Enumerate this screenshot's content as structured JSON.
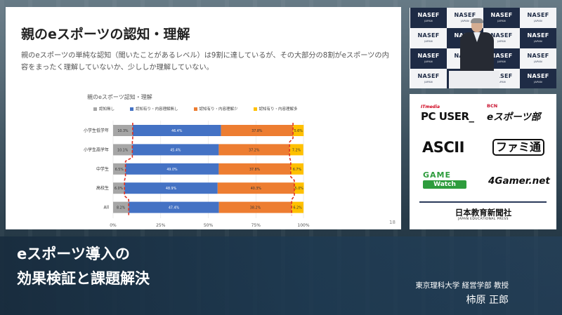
{
  "slide": {
    "title": "親のeスポーツの認知・理解",
    "description": "親のeスポーツの単純な認知（聞いたことがあるレベル）は9割に達しているが、その大部分の8割がeスポーツの内容をまったく理解していないか、少ししか理解していない。",
    "page_number": "18"
  },
  "chart_data": {
    "type": "bar",
    "stacked": "100%",
    "orientation": "horizontal",
    "title": "親のeスポーツ認知・理解",
    "categories": [
      "小学生低学年",
      "小学生高学年",
      "中学生",
      "高校生",
      "All"
    ],
    "series": [
      {
        "name": "認知無し",
        "color": "#a6a6a6",
        "values": [
          10.3,
          10.1,
          6.5,
          6.0,
          8.2
        ],
        "labels": [
          "10.3%",
          "10.1%",
          "6.5%",
          "6.0%",
          "8.2%"
        ]
      },
      {
        "name": "認知有り・内容理解無し",
        "color": "#4472c4",
        "values": [
          46.4,
          45.4,
          49.0,
          48.9,
          47.4
        ],
        "labels": [
          "46.4%",
          "45.4%",
          "49.0%",
          "48.9%",
          "47.4%"
        ]
      },
      {
        "name": "認知有り・内容理解少",
        "color": "#ed7d31",
        "values": [
          37.8,
          37.2,
          37.8,
          40.3,
          38.2
        ],
        "labels": [
          "37.8%",
          "37.2%",
          "37.8%",
          "40.3%",
          "38.2%"
        ]
      },
      {
        "name": "認知有り・内容理解多",
        "color": "#ffc000",
        "values": [
          5.6,
          7.2,
          6.7,
          5.0,
          6.2
        ],
        "labels": [
          "5.6%",
          "7.2%",
          "6.7%",
          "5.0%",
          "6.2%"
        ]
      }
    ],
    "x_ticks": [
      "0%",
      "25%",
      "50%",
      "75%",
      "100%"
    ],
    "xlim": [
      0,
      100
    ],
    "legend": "top",
    "annotations": "red dashed lines at boundaries of 認知無し and 認知有り・内容理解多"
  },
  "camera": {
    "tile_text": "NASEF",
    "tile_subtext": "JAPAN"
  },
  "sponsors": {
    "pcuser_small": "ITmedia",
    "pcuser": "PC USER_",
    "bcn_small": "BCN",
    "bcn": "eスポーツ部",
    "ascii": "ASCII",
    "famitsu": "ファミ通",
    "gamewatch_top": "GAME",
    "gamewatch_bottom": "Watch",
    "fourgamer": "4Gamer.net",
    "jep": "日本教育新聞社",
    "jep_small": "JAPAN EDUCATIONAL PRESS"
  },
  "caption": {
    "topic_line1": "eスポーツ導入の",
    "topic_line2": "効果検証と課題解決",
    "affiliation": "東京理科大学 経営学部 教授",
    "speaker_name": "柿原 正郎"
  }
}
